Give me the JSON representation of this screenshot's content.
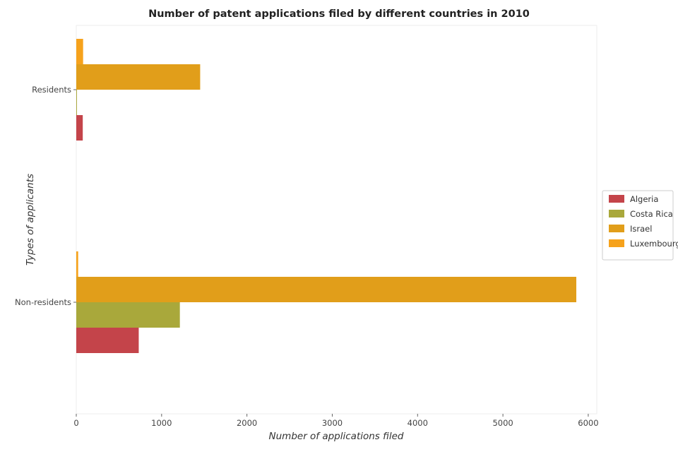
{
  "chart_data": {
    "type": "bar",
    "orientation": "horizontal",
    "title": "Number of patent applications filed by different countries in 2010",
    "xlabel": "Number of applications filed",
    "ylabel": "Types of applicants",
    "categories": [
      "Non-residents",
      "Residents"
    ],
    "xlim": [
      0,
      6100
    ],
    "xticks": [
      "0",
      "1000",
      "2000",
      "3000",
      "4000",
      "5000",
      "6000"
    ],
    "xtick_values": [
      0,
      1000,
      2000,
      3000,
      4000,
      5000,
      6000
    ],
    "grid": false,
    "legend_position": "right",
    "series": [
      {
        "name": "Algeria",
        "color": "#c4444a",
        "values": [
          732,
          76
        ]
      },
      {
        "name": "Costa Rica",
        "color": "#a9a83b",
        "values": [
          1214,
          8
        ]
      },
      {
        "name": "Israel",
        "color": "#e19e1a",
        "values": [
          5860,
          1452
        ]
      },
      {
        "name": "Luxembourg",
        "color": "#f6a21c",
        "values": [
          22,
          80
        ]
      }
    ]
  }
}
